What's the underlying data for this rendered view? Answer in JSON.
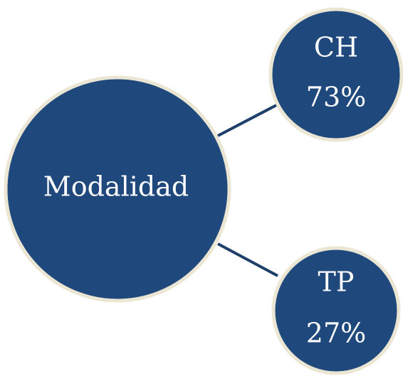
{
  "root": {
    "label": "Modalidad"
  },
  "nodes": [
    {
      "label": "CH",
      "share": "73%"
    },
    {
      "label": "TP",
      "share": "27%"
    }
  ]
}
